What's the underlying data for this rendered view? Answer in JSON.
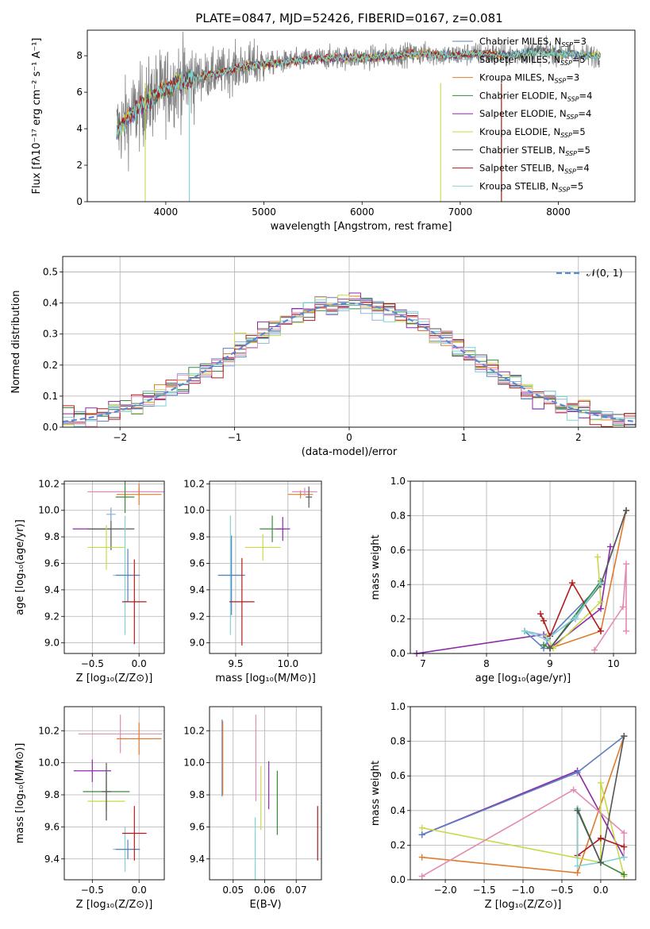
{
  "figure": {
    "title": "PLATE=0847, MJD=52426, FIBERID=0167, z=0.081"
  },
  "colors": [
    "#5a7fbf",
    "#8fb3e0",
    "#e07b2e",
    "#3a8a3a",
    "#8e2aa8",
    "#c9d84a",
    "#555555",
    "#b01c1c",
    "#7fd4d4",
    "#e38ab5"
  ],
  "chart_data": [
    {
      "id": "spectrum",
      "type": "line",
      "xlabel": "wavelength [Angstrom, rest frame]",
      "ylabel": "Flux [fλ10⁻¹⁷ erg cm⁻² s⁻¹ A⁻¹]",
      "xlim": [
        3200,
        8780
      ],
      "ylim": [
        0,
        9.4
      ],
      "xticks": [
        4000,
        5000,
        6000,
        7000,
        8000
      ],
      "yticks": [
        0,
        2,
        4,
        6,
        8
      ],
      "grid": false,
      "legend_position": "top-right",
      "data_continuum": {
        "x": [
          3500,
          3600,
          3700,
          3800,
          3900,
          4000,
          4100,
          4200,
          4300,
          4500,
          4700,
          4900,
          5100,
          5300,
          5500,
          5700,
          5900,
          6100,
          6300,
          6500,
          6700,
          6900,
          7100,
          7300,
          7500,
          7700,
          7900,
          8100,
          8300
        ],
        "y": [
          3.9,
          4.5,
          5.0,
          5.4,
          5.9,
          6.2,
          6.5,
          6.6,
          6.8,
          7.0,
          7.3,
          7.5,
          7.6,
          7.7,
          7.8,
          7.9,
          7.9,
          7.9,
          8.0,
          8.1,
          8.1,
          8.0,
          8.1,
          8.1,
          8.0,
          8.2,
          8.2,
          8.1,
          8.0
        ]
      },
      "series": [
        {
          "name": "Chabrier MILES, N_SSP=3",
          "line_label": "Chabrier MILES, N",
          "line_suffix": "=3",
          "color": "#5a7fbf"
        },
        {
          "name": "Salpeter MILES, N_SSP=5",
          "line_label": "Salpeter MILES, N",
          "line_suffix": "=5",
          "color": "#8fb3e0"
        },
        {
          "name": "Kroupa MILES, N_SSP=3",
          "line_label": "Kroupa MILES, N",
          "line_suffix": "=3",
          "color": "#e07b2e"
        },
        {
          "name": "Chabrier ELODIE, N_SSP=4",
          "line_label": "Chabrier ELODIE, N",
          "line_suffix": "=4",
          "color": "#3a8a3a"
        },
        {
          "name": "Salpeter ELODIE, N_SSP=4",
          "line_label": "Salpeter ELODIE, N",
          "line_suffix": "=4",
          "color": "#8e2aa8"
        },
        {
          "name": "Kroupa ELODIE, N_SSP=5",
          "line_label": "Kroupa ELODIE, N",
          "line_suffix": "=5",
          "color": "#c9d84a"
        },
        {
          "name": "Chabrier STELIB, N_SSP=5",
          "line_label": "Chabrier STELIB, N",
          "line_suffix": "=5",
          "color": "#555555"
        },
        {
          "name": "Salpeter STELIB, N_SSP=4",
          "line_label": "Salpeter STELIB, N",
          "line_suffix": "=4",
          "color": "#b01c1c"
        },
        {
          "name": "Kroupa STELIB, N_SSP=5",
          "line_label": "Kroupa STELIB, N",
          "line_suffix": "=5",
          "color": "#7fd4d4"
        }
      ],
      "ssp_subscript": "SSP"
    },
    {
      "id": "residuals",
      "type": "line",
      "xlabel": "(data-model)/error",
      "ylabel": "Normed distribution",
      "xlim": [
        -2.5,
        2.5
      ],
      "ylim": [
        0,
        0.55
      ],
      "xticks": [
        -2,
        -1,
        0,
        1,
        2
      ],
      "yticks": [
        0.0,
        0.1,
        0.2,
        0.3,
        0.4,
        0.5
      ],
      "grid": true,
      "legend_position": "top-right",
      "normal_label": "𝒩(0, 1)",
      "bin_width": 0.1
    },
    {
      "id": "age-vs-Z",
      "type": "scatter",
      "xlabel": "Z [log₁₀(Z/Z⊙)]",
      "ylabel": "age  [log₁₀(age/yr)]",
      "xlim": [
        -0.8,
        0.27
      ],
      "ylim": [
        8.92,
        10.22
      ],
      "xticks": [
        -0.5,
        0.0
      ],
      "yticks": [
        9.0,
        9.2,
        9.4,
        9.6,
        9.8,
        10.0,
        10.2
      ],
      "grid": true,
      "points": [
        {
          "x": -0.5,
          "y": 9.86,
          "xerr": 0.21,
          "yerr": 0.0,
          "color": "#8e2aa8"
        },
        {
          "x": -0.3,
          "y": 9.86,
          "xerr": 0.25,
          "yerr": 0.16,
          "color": "#555555"
        },
        {
          "x": -0.35,
          "y": 9.72,
          "xerr": 0.2,
          "yerr": 0.17,
          "color": "#c9d84a"
        },
        {
          "x": -0.15,
          "y": 9.51,
          "xerr": 0.13,
          "yerr": 0.45,
          "color": "#7fd4d4"
        },
        {
          "x": -0.12,
          "y": 9.51,
          "xerr": 0.13,
          "yerr": 0.2,
          "color": "#5a7fbf"
        },
        {
          "x": -0.05,
          "y": 9.31,
          "xerr": 0.13,
          "yerr": 0.32,
          "color": "#b01c1c"
        },
        {
          "x": 0.0,
          "y": 10.14,
          "xerr": 0.55,
          "yerr": 0.03,
          "color": "#e38ab5"
        },
        {
          "x": 0.0,
          "y": 10.12,
          "xerr": 0.24,
          "yerr": 0.08,
          "color": "#e07b2e"
        },
        {
          "x": -0.15,
          "y": 10.1,
          "xerr": 0.1,
          "yerr": 0.12,
          "color": "#3a8a3a"
        },
        {
          "x": -0.3,
          "y": 9.97,
          "xerr": 0.05,
          "yerr": 0.05,
          "color": "#8fb3e0"
        }
      ]
    },
    {
      "id": "age-vs-mass",
      "type": "scatter",
      "xlabel": "mass [log₁₀(M/M⊙)]",
      "ylabel": "",
      "xlim": [
        9.25,
        10.32
      ],
      "ylim": [
        8.92,
        10.22
      ],
      "xticks": [
        9.5,
        10.0
      ],
      "yticks": [
        9.0,
        9.2,
        9.4,
        9.6,
        9.8,
        10.0,
        10.2
      ],
      "grid": true,
      "points": [
        {
          "x": 9.45,
          "y": 9.51,
          "xerr": 0.1,
          "yerr": 0.45,
          "color": "#7fd4d4"
        },
        {
          "x": 9.46,
          "y": 9.51,
          "xerr": 0.13,
          "yerr": 0.3,
          "color": "#5a7fbf"
        },
        {
          "x": 9.56,
          "y": 9.31,
          "xerr": 0.12,
          "yerr": 0.33,
          "color": "#b01c1c"
        },
        {
          "x": 9.76,
          "y": 9.72,
          "xerr": 0.17,
          "yerr": 0.1,
          "color": "#c9d84a"
        },
        {
          "x": 9.85,
          "y": 9.86,
          "xerr": 0.12,
          "yerr": 0.1,
          "color": "#3a8a3a"
        },
        {
          "x": 9.95,
          "y": 9.86,
          "xerr": 0.07,
          "yerr": 0.09,
          "color": "#8e2aa8"
        },
        {
          "x": 10.12,
          "y": 10.12,
          "xerr": 0.12,
          "yerr": 0.03,
          "color": "#e07b2e"
        },
        {
          "x": 10.16,
          "y": 10.14,
          "xerr": 0.12,
          "yerr": 0.03,
          "color": "#e38ab5"
        },
        {
          "x": 10.2,
          "y": 10.1,
          "xerr": 0.03,
          "yerr": 0.08,
          "color": "#555555"
        }
      ]
    },
    {
      "id": "weight-vs-age",
      "type": "line",
      "xlabel": "age  [log₁₀(age/yr)]",
      "ylabel": "mass weight",
      "xlim": [
        6.8,
        10.35
      ],
      "ylim": [
        0,
        1.0
      ],
      "xticks": [
        7,
        8,
        9,
        10
      ],
      "yticks": [
        0.0,
        0.2,
        0.4,
        0.6,
        0.8,
        1.0
      ],
      "grid": true,
      "series": [
        {
          "color": "#8e2aa8",
          "x": [
            6.9,
            8.9,
            9.0,
            9.8,
            9.95
          ],
          "y": [
            0.0,
            0.11,
            0.03,
            0.26,
            0.62
          ]
        },
        {
          "color": "#5a7fbf",
          "x": [
            8.6,
            8.9,
            9.0,
            9.8,
            10.2
          ],
          "y": [
            0.13,
            0.03,
            0.1,
            0.4,
            0.83
          ]
        },
        {
          "color": "#8fb3e0",
          "x": [
            8.6,
            9.0,
            9.4,
            9.8
          ],
          "y": [
            0.13,
            0.1,
            0.2,
            0.42
          ]
        },
        {
          "color": "#e07b2e",
          "x": [
            9.0,
            9.8,
            10.2
          ],
          "y": [
            0.03,
            0.13,
            0.83
          ]
        },
        {
          "color": "#3a8a3a",
          "x": [
            8.9,
            9.0,
            9.8
          ],
          "y": [
            0.05,
            0.03,
            0.42
          ]
        },
        {
          "color": "#c9d84a",
          "x": [
            8.95,
            9.05,
            9.8,
            9.75
          ],
          "y": [
            0.1,
            0.03,
            0.3,
            0.56
          ]
        },
        {
          "color": "#555555",
          "x": [
            9.0,
            9.8,
            10.2
          ],
          "y": [
            0.03,
            0.4,
            0.83
          ]
        },
        {
          "color": "#b01c1c",
          "x": [
            8.85,
            8.9,
            9.0,
            9.35,
            9.8
          ],
          "y": [
            0.23,
            0.19,
            0.1,
            0.41,
            0.13
          ]
        },
        {
          "color": "#7fd4d4",
          "x": [
            8.6,
            8.95,
            9.4,
            9.8
          ],
          "y": [
            0.13,
            0.08,
            0.21,
            0.41
          ]
        },
        {
          "color": "#e38ab5",
          "x": [
            9.7,
            10.15,
            10.2,
            10.2
          ],
          "y": [
            0.02,
            0.27,
            0.52,
            0.13
          ]
        }
      ]
    },
    {
      "id": "mass-vs-Z",
      "type": "scatter",
      "xlabel": "Z [log₁₀(Z/Z⊙)]",
      "ylabel": "mass [log₁₀(M/M⊙)]",
      "xlim": [
        -0.8,
        0.27
      ],
      "ylim": [
        9.27,
        10.35
      ],
      "xticks": [
        -0.5,
        0.0
      ],
      "yticks": [
        9.4,
        9.6,
        9.8,
        10.0,
        10.2
      ],
      "grid": true,
      "points": [
        {
          "x": -0.5,
          "y": 9.95,
          "xerr": 0.2,
          "yerr": 0.07,
          "color": "#8e2aa8"
        },
        {
          "x": -0.35,
          "y": 9.82,
          "xerr": 0.25,
          "yerr": 0.12,
          "color": "#3a8a3a"
        },
        {
          "x": -0.35,
          "y": 9.76,
          "xerr": 0.2,
          "yerr": 0.12,
          "color": "#c9d84a"
        },
        {
          "x": -0.15,
          "y": 9.46,
          "xerr": 0.13,
          "yerr": 0.14,
          "color": "#7fd4d4"
        },
        {
          "x": -0.12,
          "y": 9.46,
          "xerr": 0.13,
          "yerr": 0.06,
          "color": "#5a7fbf"
        },
        {
          "x": -0.05,
          "y": 9.56,
          "xerr": 0.13,
          "yerr": 0.17,
          "color": "#b01c1c"
        },
        {
          "x": -0.2,
          "y": 10.18,
          "xerr": 0.45,
          "yerr": 0.12,
          "color": "#e38ab5"
        },
        {
          "x": 0.0,
          "y": 10.15,
          "xerr": 0.24,
          "yerr": 0.1,
          "color": "#e07b2e"
        },
        {
          "x": -0.35,
          "y": 9.82,
          "xerr": 0.05,
          "yerr": 0.18,
          "color": "#555555"
        }
      ]
    },
    {
      "id": "mass-vs-EBV",
      "type": "scatter",
      "xlabel": "E(B-V)",
      "ylabel": "",
      "xlim": [
        0.0425,
        0.078
      ],
      "ylim": [
        9.27,
        10.35
      ],
      "xticks": [
        0.05,
        0.06,
        0.07
      ],
      "yticks": [
        9.4,
        9.6,
        9.8,
        10.0,
        10.2
      ],
      "grid": true,
      "points": [
        {
          "x": 0.0465,
          "y": 10.03,
          "xerr": 0,
          "yerr": 0.24,
          "color": "#5a7fbf"
        },
        {
          "x": 0.0467,
          "y": 10.03,
          "xerr": 0,
          "yerr": 0.23,
          "color": "#e07b2e"
        },
        {
          "x": 0.057,
          "y": 9.46,
          "xerr": 0,
          "yerr": 0.2,
          "color": "#7fd4d4"
        },
        {
          "x": 0.0572,
          "y": 10.03,
          "xerr": 0,
          "yerr": 0.27,
          "color": "#e38ab5"
        },
        {
          "x": 0.0588,
          "y": 9.78,
          "xerr": 0,
          "yerr": 0.2,
          "color": "#c9d84a"
        },
        {
          "x": 0.0613,
          "y": 9.86,
          "xerr": 0,
          "yerr": 0.15,
          "color": "#8e2aa8"
        },
        {
          "x": 0.064,
          "y": 9.75,
          "xerr": 0,
          "yerr": 0.2,
          "color": "#3a8a3a"
        },
        {
          "x": 0.0768,
          "y": 9.56,
          "xerr": 0,
          "yerr": 0.17,
          "color": "#b01c1c"
        }
      ]
    },
    {
      "id": "weight-vs-Z",
      "type": "line",
      "xlabel": "Z [log₁₀(Z/Z⊙)]",
      "ylabel": "mass weight",
      "xlim": [
        -2.45,
        0.45
      ],
      "ylim": [
        0,
        1.0
      ],
      "xticks": [
        -2.0,
        -1.5,
        -1.0,
        -0.5,
        0.0
      ],
      "yticks": [
        0.0,
        0.2,
        0.4,
        0.6,
        0.8,
        1.0
      ],
      "grid": true,
      "series": [
        {
          "color": "#8e2aa8",
          "x": [
            -2.3,
            -0.3,
            0.3
          ],
          "y": [
            0.26,
            0.63,
            0.13
          ]
        },
        {
          "color": "#5a7fbf",
          "x": [
            -2.3,
            -0.3,
            0.3
          ],
          "y": [
            0.26,
            0.62,
            0.83
          ]
        },
        {
          "color": "#e07b2e",
          "x": [
            -2.3,
            -0.3,
            0.3
          ],
          "y": [
            0.13,
            0.04,
            0.83
          ]
        },
        {
          "color": "#c9d84a",
          "x": [
            -2.3,
            0.0,
            0.0,
            0.3
          ],
          "y": [
            0.3,
            0.1,
            0.56,
            0.02
          ]
        },
        {
          "color": "#e38ab5",
          "x": [
            -2.3,
            -0.35,
            0.3,
            0.3
          ],
          "y": [
            0.02,
            0.52,
            0.27,
            0.13
          ]
        },
        {
          "color": "#b01c1c",
          "x": [
            -0.3,
            -0.3,
            0.0,
            0.3
          ],
          "y": [
            0.41,
            0.14,
            0.24,
            0.19
          ]
        },
        {
          "color": "#3a8a3a",
          "x": [
            -0.3,
            0.0,
            0.3
          ],
          "y": [
            0.41,
            0.1,
            0.03
          ]
        },
        {
          "color": "#7fd4d4",
          "x": [
            -0.3,
            -0.3,
            0.0,
            0.3
          ],
          "y": [
            0.41,
            0.08,
            0.1,
            0.13
          ]
        },
        {
          "color": "#555555",
          "x": [
            -0.3,
            0.0,
            0.3
          ],
          "y": [
            0.4,
            0.1,
            0.83
          ]
        }
      ]
    }
  ]
}
